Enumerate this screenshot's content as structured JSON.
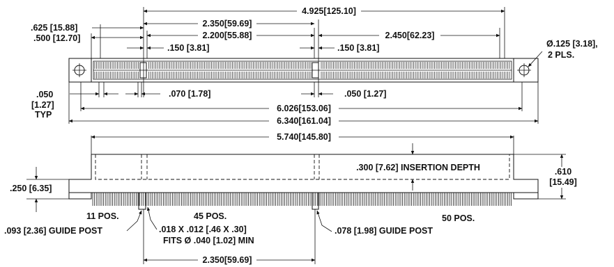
{
  "top_view": {
    "dim_overall_right": "4.925[125.10]",
    "dim_2350_top": "2.350[59.69]",
    "dim_2200": "2.200[55.88]",
    "dim_2450": "2.450[62.23]",
    "dim_625": ".625 [15.88]",
    "dim_500": ".500 [12.70]",
    "dim_150_a": ".150 [3.81]",
    "dim_150_b": ".150 [3.81]",
    "dim_hole_line1": "Ø.125 [3.18],",
    "dim_hole_line2": "2 PLS.",
    "dim_050_l1": ".050",
    "dim_050_l2": "[1.27]",
    "dim_050_l3": "TYP",
    "dim_070": ".070 [1.78]",
    "dim_050_right": ".050 [1.27]",
    "dim_6026": "6.026[153.06]",
    "dim_6340": "6.340[161.04]"
  },
  "side_view": {
    "dim_5740": "5.740[145.80]",
    "insertion_depth": ".300 [7.62] INSERTION DEPTH",
    "dim_610_l1": ".610",
    "dim_610_l2": "[15.49]",
    "dim_250": ".250 [6.35]",
    "pos_11": "11 POS.",
    "pos_45": "45 POS.",
    "pos_50": "50 POS.",
    "guide_post_093": ".093 [2.36] GUIDE POST",
    "guide_post_078": ".078 [1.98] GUIDE POST",
    "pin_size_l1": ".018 X .012 [.46 X .30]",
    "pin_size_l2": "FITS  Ø .040 [1.02] MIN",
    "dim_2350_bottom": "2.350[59.69]"
  }
}
